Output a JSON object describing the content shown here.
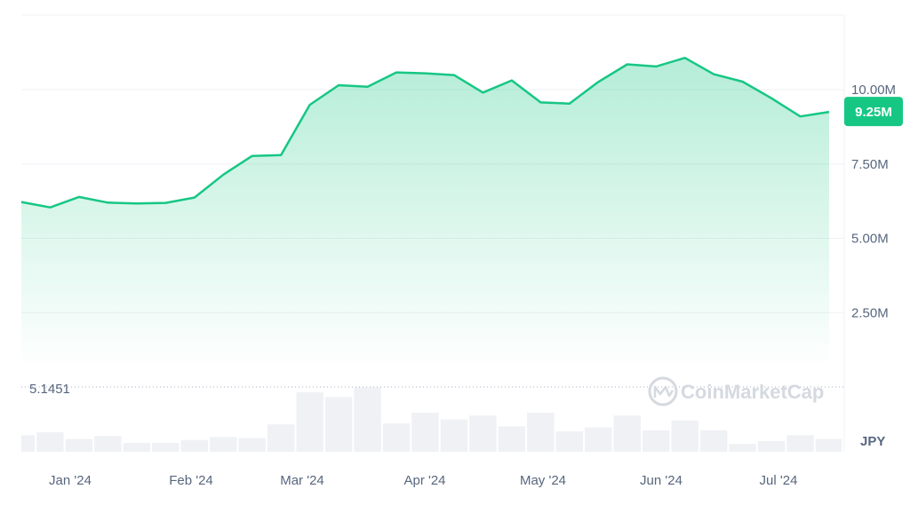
{
  "chart_data": {
    "type": "area",
    "x": [
      "2024-01-01",
      "2024-01-08",
      "2024-01-15",
      "2024-01-22",
      "2024-01-29",
      "2024-02-05",
      "2024-02-12",
      "2024-02-19",
      "2024-02-26",
      "2024-03-04",
      "2024-03-11",
      "2024-03-18",
      "2024-03-25",
      "2024-04-01",
      "2024-04-08",
      "2024-04-15",
      "2024-04-22",
      "2024-04-29",
      "2024-05-06",
      "2024-05-13",
      "2024-05-20",
      "2024-05-27",
      "2024-06-03",
      "2024-06-10",
      "2024-06-17",
      "2024-06-24",
      "2024-07-01",
      "2024-07-08",
      "2024-07-15"
    ],
    "series": [
      {
        "values": [
          6.22,
          6.04,
          6.39,
          6.2,
          6.17,
          6.19,
          6.37,
          7.14,
          7.77,
          7.8,
          9.49,
          10.15,
          10.1,
          10.58,
          10.55,
          10.49,
          9.9,
          10.31,
          9.57,
          9.53,
          10.26,
          10.85,
          10.78,
          11.07,
          10.52,
          10.27,
          9.71,
          9.1,
          9.25
        ]
      },
      {
        "values": [
          0.17,
          0.2,
          0.13,
          0.16,
          0.09,
          0.09,
          0.12,
          0.15,
          0.14,
          0.28,
          0.61,
          0.56,
          0.66,
          0.29,
          0.4,
          0.33,
          0.37,
          0.26,
          0.4,
          0.21,
          0.25,
          0.37,
          0.22,
          0.32,
          0.22,
          0.08,
          0.11,
          0.17,
          0.13
        ]
      }
    ],
    "x_tick_labels": [
      "Jan '24",
      "Feb '24",
      "Mar '24",
      "Apr '24",
      "May '24",
      "Jun '24",
      "Jul '24"
    ],
    "y_tick_labels": [
      "2.50M",
      "5.00M",
      "7.50M",
      "10.00M"
    ],
    "y_ticks": [
      2.5,
      5,
      7.5,
      10
    ],
    "ylim": [
      0,
      12.5
    ],
    "current_value_label": "9.25M",
    "reference_line_label": "5.1451",
    "currency_label": "JPY",
    "watermark": "CoinMarketCap",
    "grid": true,
    "colors": {
      "line": "#16c784",
      "area_top": "#16c784",
      "volume": "#eff1f5",
      "grid": "#eff2f5",
      "badge": "#16c784",
      "tick_text": "#58667e"
    }
  }
}
